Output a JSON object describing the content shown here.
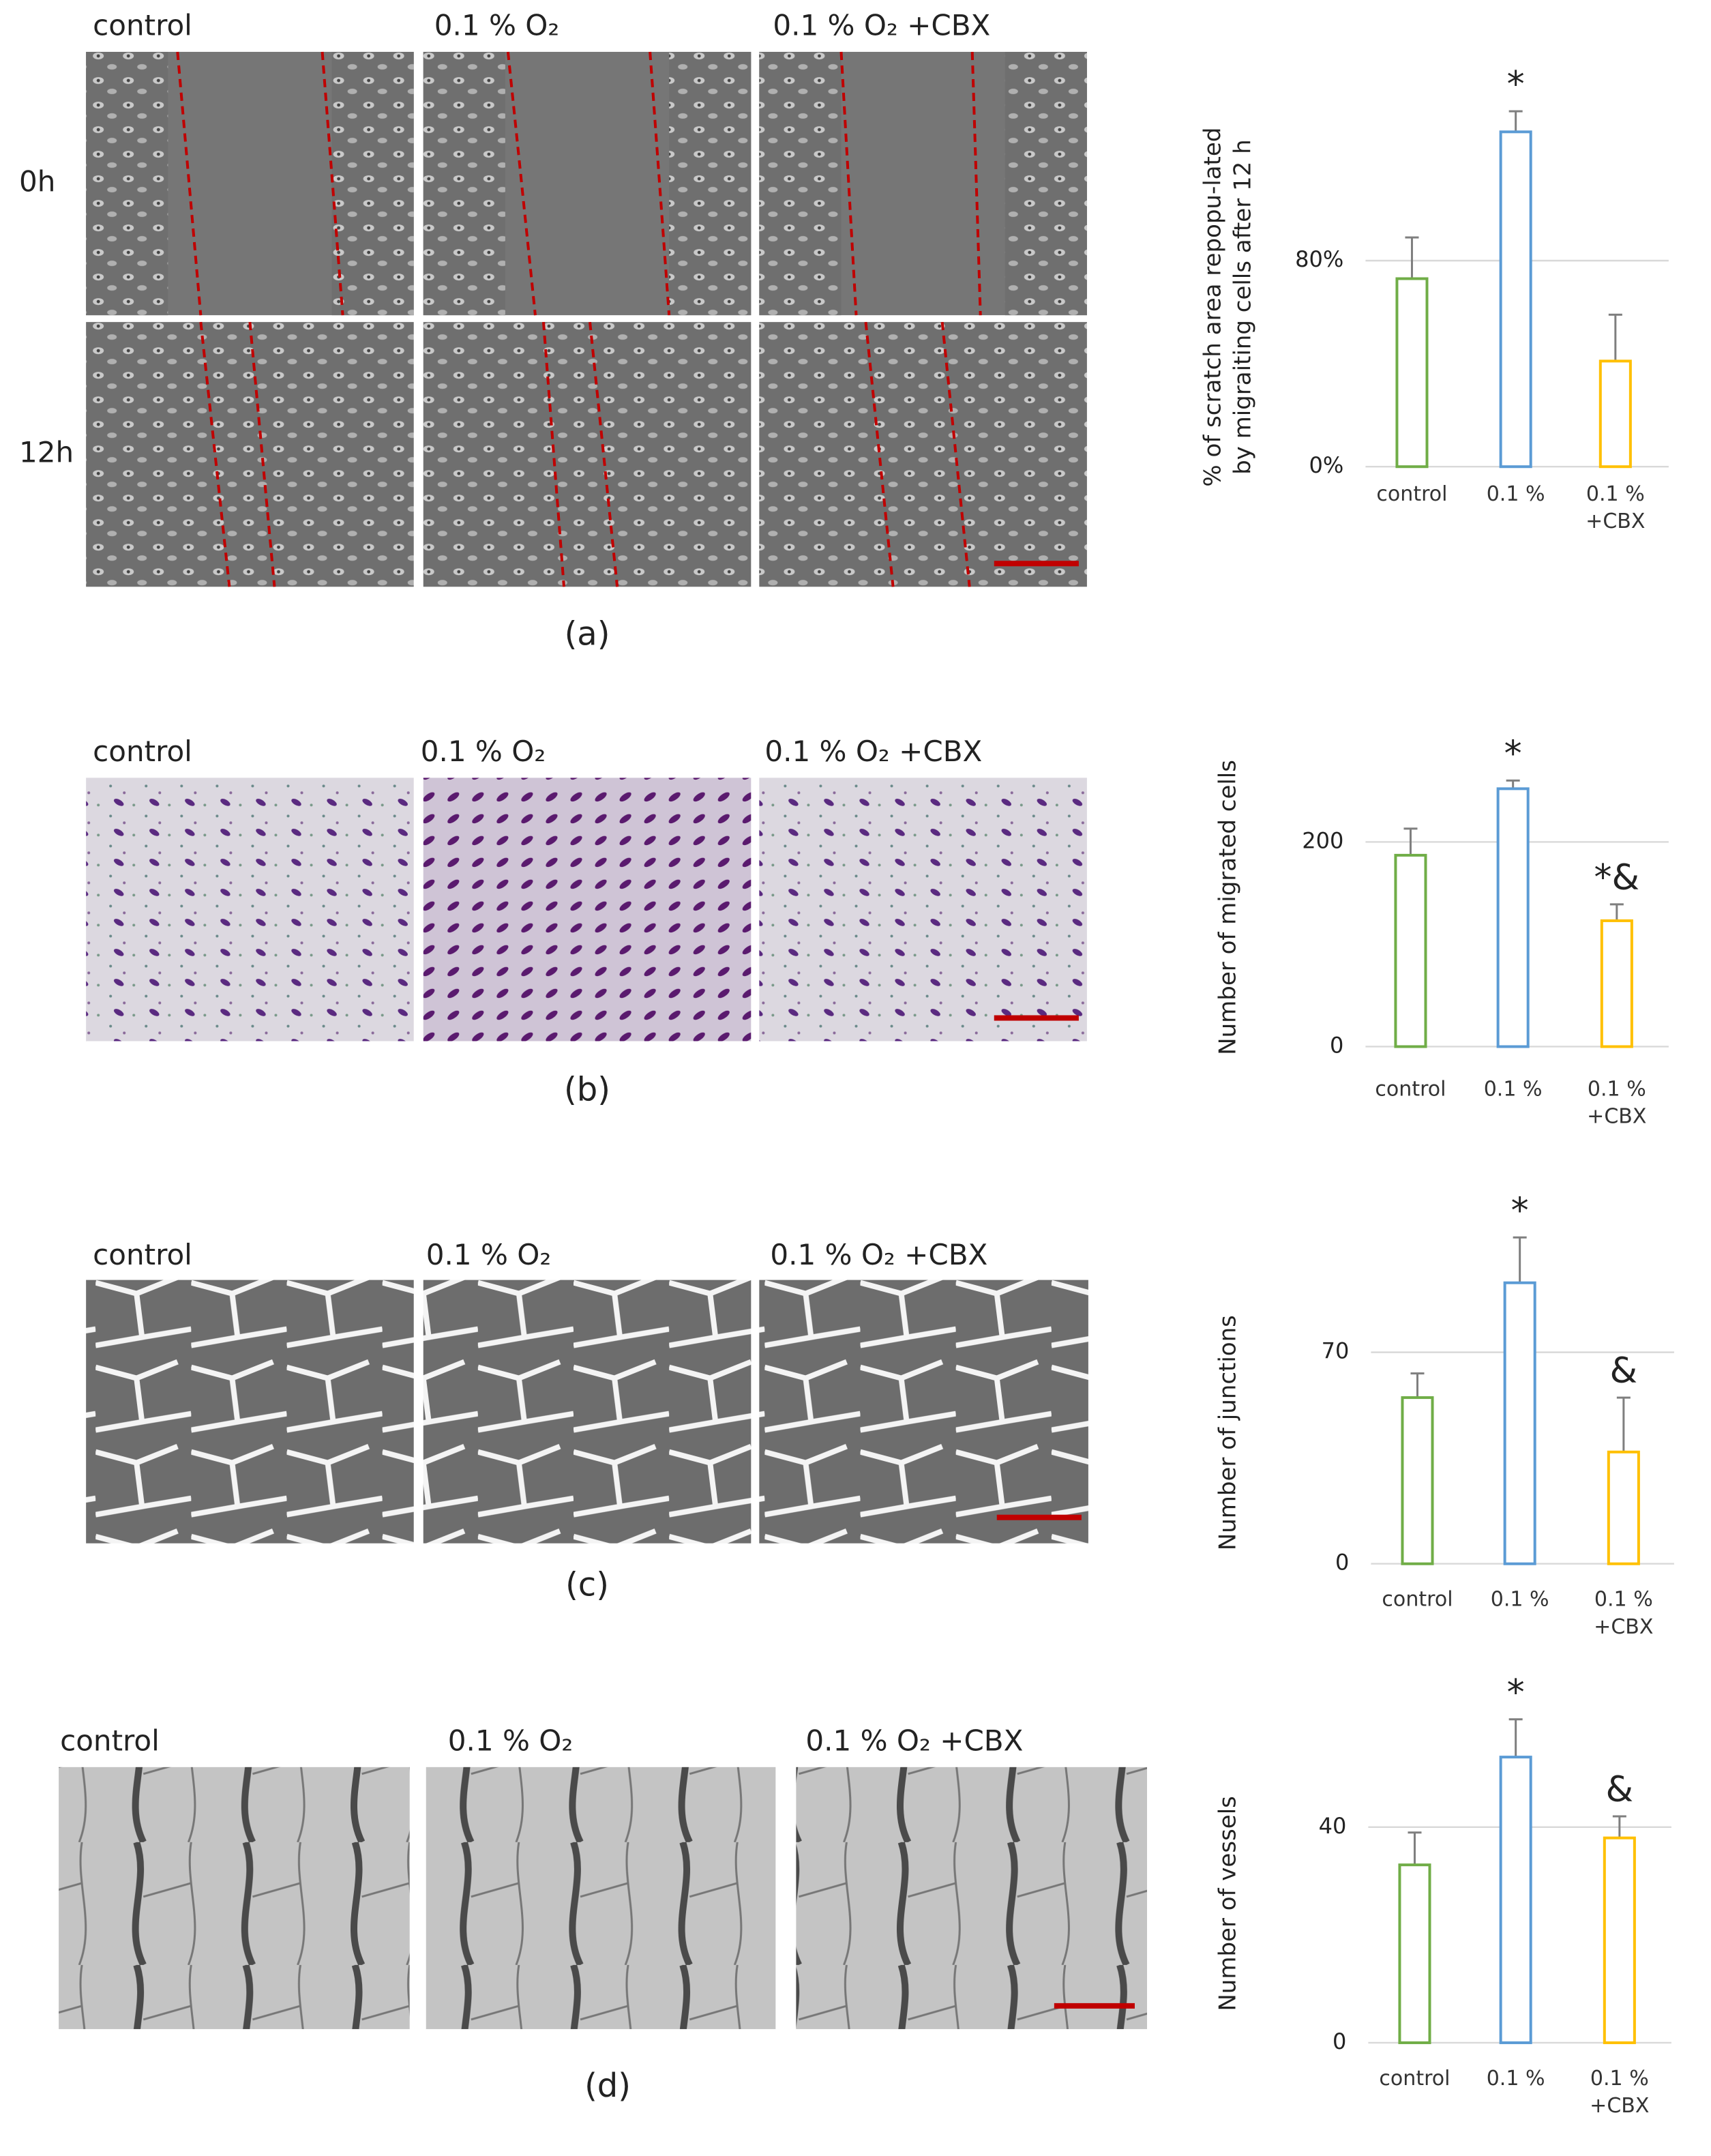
{
  "panels": [
    {
      "label": "(a)",
      "columns": [
        "control",
        "0.1 % O₂",
        "0.1 % O₂ +CBX"
      ],
      "rows": [
        "0h",
        "12h"
      ]
    },
    {
      "label": "(b)",
      "columns": [
        "control",
        "0.1 % O₂",
        "0.1 % O₂ +CBX"
      ]
    },
    {
      "label": "(c)",
      "columns": [
        "control",
        "0.1 % O₂",
        "0.1 % O₂ +CBX"
      ]
    },
    {
      "label": "(d)",
      "columns": [
        "control",
        "0.1 % O₂",
        "0.1 % O₂ +CBX"
      ]
    }
  ],
  "chart_data": [
    {
      "type": "bar",
      "ylabel": [
        "% of scratch area repopu-lated",
        "by migraiting cells after 12 h"
      ],
      "categories": [
        "control",
        "0.1 %",
        "0.1 % +CBX"
      ],
      "values": [
        73,
        130,
        41
      ],
      "errors": [
        16,
        8,
        18
      ],
      "colors": [
        "#70ad47",
        "#5b9bd5",
        "#ffc000"
      ],
      "annotations": [
        null,
        "*",
        null
      ],
      "ylim": [
        0,
        160
      ],
      "yticks": [
        {
          "value": 0,
          "label": "0%"
        },
        {
          "value": 80,
          "label": "80%"
        }
      ],
      "grid": true
    },
    {
      "type": "bar",
      "ylabel": "Number of migrated cells",
      "categories": [
        "control",
        "0.1 %",
        "0.1 % +CBX"
      ],
      "values": [
        187,
        252,
        123
      ],
      "errors": [
        26,
        8,
        16
      ],
      "colors": [
        "#70ad47",
        "#5b9bd5",
        "#ffc000"
      ],
      "annotations": [
        null,
        "*",
        "*&"
      ],
      "ylim": [
        0,
        300
      ],
      "yticks": [
        0,
        200
      ],
      "grid": true
    },
    {
      "type": "bar",
      "ylabel": "Number of junctions",
      "categories": [
        "control",
        "0.1 %",
        "0.1 % +CBX"
      ],
      "values": [
        55,
        93,
        37
      ],
      "errors": [
        8,
        15,
        18
      ],
      "colors": [
        "#70ad47",
        "#5b9bd5",
        "#ffc000"
      ],
      "annotations": [
        null,
        "*",
        "&"
      ],
      "ylim": [
        0,
        140
      ],
      "yticks": [
        0,
        70
      ],
      "grid": true
    },
    {
      "type": "bar",
      "ylabel": "Number of vessels",
      "categories": [
        "control",
        "0.1 %",
        "0.1 % +CBX"
      ],
      "values": [
        33,
        53,
        38
      ],
      "errors": [
        6,
        7,
        4
      ],
      "colors": [
        "#70ad47",
        "#5b9bd5",
        "#ffc000"
      ],
      "annotations": [
        null,
        "*",
        "&"
      ],
      "ylim": [
        0,
        80
      ],
      "yticks": [
        0,
        40
      ],
      "grid": true
    }
  ]
}
